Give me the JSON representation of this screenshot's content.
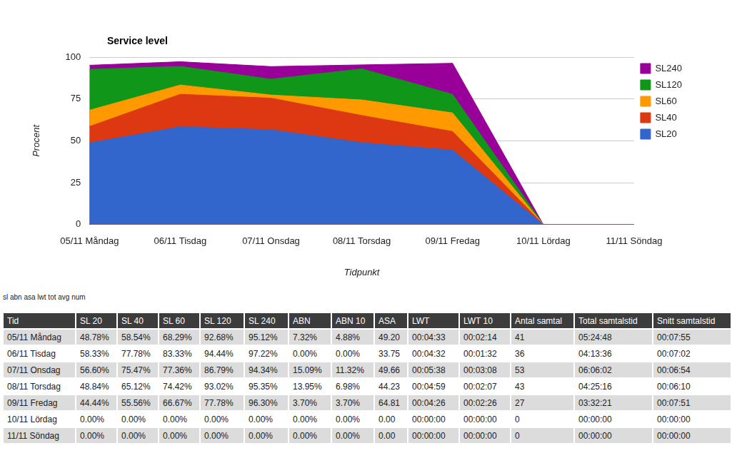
{
  "chart_data": {
    "type": "area",
    "title": "Service level",
    "x_label": "Tidpunkt",
    "y_label": "Procent",
    "categories": [
      "05/11 Måndag",
      "06/11 Tisdag",
      "07/11 Onsdag",
      "08/11 Torsdag",
      "09/11 Fredag",
      "10/11 Lördag",
      "11/11 Söndag"
    ],
    "series": [
      {
        "name": "SL20",
        "color": "#3366cc",
        "values": [
          48.78,
          58.33,
          56.6,
          48.84,
          44.44,
          0,
          0
        ]
      },
      {
        "name": "SL40",
        "color": "#dc3912",
        "values": [
          58.54,
          77.78,
          75.47,
          65.12,
          55.56,
          0,
          0
        ]
      },
      {
        "name": "SL60",
        "color": "#ff9900",
        "values": [
          68.29,
          83.33,
          77.36,
          74.42,
          66.67,
          0,
          0
        ]
      },
      {
        "name": "SL120",
        "color": "#109618",
        "values": [
          92.68,
          94.44,
          86.79,
          93.02,
          77.78,
          0,
          0
        ]
      },
      {
        "name": "SL240",
        "color": "#990099",
        "values": [
          95.12,
          97.22,
          94.34,
          95.35,
          96.3,
          0,
          0
        ]
      }
    ],
    "ylim": [
      0,
      100
    ],
    "yticks": [
      0,
      25,
      50,
      75,
      100
    ],
    "grid": true,
    "legend": "right",
    "stacked": false
  },
  "caption": "sl abn asa lwt tot avg num",
  "table": {
    "header": [
      "Tid",
      "SL 20",
      "SL 40",
      "SL 60",
      "SL 120",
      "SL 240",
      "ABN",
      "ABN 10",
      "ASA",
      "LWT",
      "LWT 10",
      "Antal samtal",
      "Total samtalstid",
      "Snitt samtalstid"
    ],
    "rows": [
      [
        "05/11 Måndag",
        "48.78%",
        "58.54%",
        "68.29%",
        "92.68%",
        "95.12%",
        "7.32%",
        "4.88%",
        "49.20",
        "00:04:33",
        "00:02:14",
        "41",
        "05:24:48",
        "00:07:55"
      ],
      [
        "06/11 Tisdag",
        "58.33%",
        "77.78%",
        "83.33%",
        "94.44%",
        "97.22%",
        "0.00%",
        "0.00%",
        "33.75",
        "00:04:32",
        "00:01:32",
        "36",
        "04:13:36",
        "00:07:02"
      ],
      [
        "07/11 Onsdag",
        "56.60%",
        "75.47%",
        "77.36%",
        "86.79%",
        "94.34%",
        "15.09%",
        "11.32%",
        "49.66",
        "00:05:38",
        "00:03:08",
        "53",
        "06:06:02",
        "00:06:54"
      ],
      [
        "08/11 Torsdag",
        "48.84%",
        "65.12%",
        "74.42%",
        "93.02%",
        "95.35%",
        "13.95%",
        "6.98%",
        "44.23",
        "00:04:59",
        "00:02:07",
        "43",
        "04:25:16",
        "00:06:10"
      ],
      [
        "09/11 Fredag",
        "44.44%",
        "55.56%",
        "66.67%",
        "77.78%",
        "96.30%",
        "3.70%",
        "3.70%",
        "64.81",
        "00:04:26",
        "00:02:26",
        "27",
        "03:32:21",
        "00:07:51"
      ],
      [
        "10/11 Lördag",
        "0.00%",
        "0.00%",
        "0.00%",
        "0.00%",
        "0.00%",
        "0.00%",
        "0.00%",
        "0.00",
        "00:00:00",
        "00:00:00",
        "0",
        "00:00:00",
        "00:00:00"
      ],
      [
        "11/11 Söndag",
        "0.00%",
        "0.00%",
        "0.00%",
        "0.00%",
        "0.00%",
        "0.00%",
        "0.00%",
        "0.00",
        "00:00:00",
        "00:00:00",
        "0",
        "00:00:00",
        "00:00:00"
      ]
    ]
  }
}
